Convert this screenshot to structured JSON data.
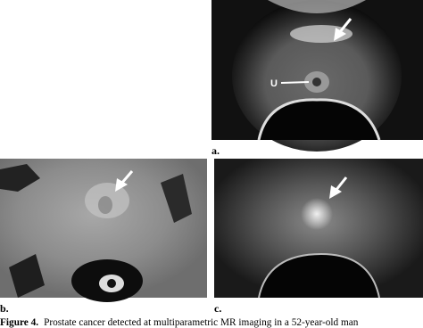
{
  "panels": [
    {
      "label": "a.",
      "annotations": [
        "U"
      ]
    },
    {
      "label": "b."
    },
    {
      "label": "c."
    }
  ],
  "caption": {
    "figure": "Figure 4.",
    "text": "Prostate cancer detected at multiparametric MR imaging in a 52-year-old man"
  }
}
